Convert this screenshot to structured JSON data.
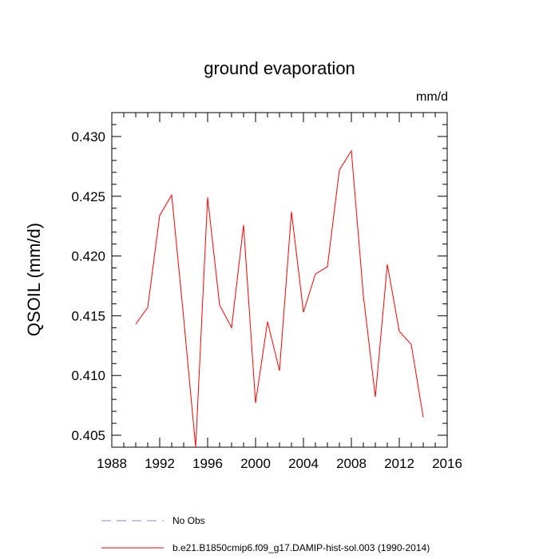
{
  "chart_data": {
    "type": "line",
    "title": "ground evaporation",
    "units": "mm/d",
    "ylabel": "QSOIL  (mm/d)",
    "xlabel": "",
    "xlim": [
      1988,
      2016
    ],
    "ylim": [
      0.404,
      0.432
    ],
    "xticks": [
      1988,
      1992,
      1996,
      2000,
      2004,
      2008,
      2012,
      2016
    ],
    "xtick_labels": [
      "1988",
      "1992",
      "1996",
      "2000",
      "2004",
      "2008",
      "2012",
      "2016"
    ],
    "yticks": [
      0.405,
      0.41,
      0.415,
      0.42,
      0.425,
      0.43
    ],
    "ytick_labels": [
      "0.405",
      "0.410",
      "0.415",
      "0.420",
      "0.425",
      "0.430"
    ],
    "grid": false,
    "legend_position": "bottom",
    "series": [
      {
        "name": "b.e21.B1850cmip6.f09_g17.DAMIP-hist-sol.003 (1990-2014)",
        "color": "#ff0000",
        "style": "solid",
        "x": [
          1990,
          1991,
          1992,
          1993,
          1994,
          1995,
          1996,
          1997,
          1998,
          1999,
          2000,
          2001,
          2002,
          2003,
          2004,
          2005,
          2006,
          2007,
          2008,
          2009,
          2010,
          2011,
          2012,
          2013,
          2014
        ],
        "y": [
          0.4143,
          0.4157,
          0.4234,
          0.4251,
          0.4148,
          0.404,
          0.4249,
          0.4159,
          0.414,
          0.4226,
          0.4077,
          0.4145,
          0.4104,
          0.4237,
          0.4153,
          0.4185,
          0.4191,
          0.4272,
          0.4288,
          0.4167,
          0.4082,
          0.4193,
          0.4137,
          0.4126,
          0.4065
        ]
      }
    ],
    "legend": [
      {
        "label": "No Obs",
        "color": "#8080ff",
        "style": "dashed"
      },
      {
        "label": "b.e21.B1850cmip6.f09_g17.DAMIP-hist-sol.003 (1990-2014)",
        "color": "#ff0000",
        "style": "solid"
      }
    ]
  }
}
